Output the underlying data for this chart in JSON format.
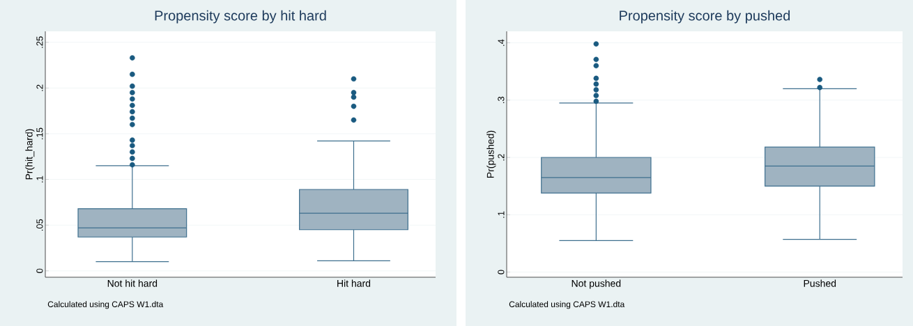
{
  "chart_data": [
    {
      "type": "box",
      "title": "Propensity score by hit hard",
      "ylabel": "Pr(hit_hard)",
      "categories": [
        "Not hit hard",
        "Hit hard"
      ],
      "color": "#9fb3c1",
      "boxes": [
        {
          "low": 0.01,
          "q1": 0.037,
          "median": 0.047,
          "q3": 0.068,
          "high": 0.115,
          "outliers": [
            0.116,
            0.123,
            0.13,
            0.137,
            0.143,
            0.16,
            0.167,
            0.174,
            0.181,
            0.188,
            0.195,
            0.202,
            0.215,
            0.233
          ]
        },
        {
          "low": 0.011,
          "q1": 0.045,
          "median": 0.063,
          "q3": 0.089,
          "high": 0.142,
          "outliers": [
            0.165,
            0.18,
            0.19,
            0.195,
            0.21
          ]
        }
      ],
      "ylim": [
        -0.007,
        0.262
      ],
      "yticks": [
        0,
        {
          "value": 0.05,
          "label": ".05"
        },
        {
          "value": 0.1,
          "label": ".1"
        },
        {
          "value": 0.15,
          "label": ".15"
        },
        {
          "value": 0.2,
          "label": ".2"
        },
        {
          "value": 0.25,
          "label": ".25"
        }
      ],
      "grid": "y",
      "annotations": [
        "Calculated using CAPS W1.dta"
      ]
    },
    {
      "type": "box",
      "title": "Propensity score by pushed",
      "ylabel": "Pr(pushed)",
      "categories": [
        "Not pushed",
        "Pushed"
      ],
      "color": "#9fb3c1",
      "boxes": [
        {
          "low": 0.055,
          "q1": 0.138,
          "median": 0.165,
          "q3": 0.2,
          "high": 0.295,
          "outliers": [
            0.298,
            0.308,
            0.318,
            0.328,
            0.338,
            0.36,
            0.371,
            0.398
          ]
        },
        {
          "low": 0.057,
          "q1": 0.15,
          "median": 0.185,
          "q3": 0.218,
          "high": 0.32,
          "outliers": [
            0.322,
            0.336
          ]
        }
      ],
      "ylim": [
        -0.009,
        0.42
      ],
      "yticks": [
        0,
        {
          "value": 0.1,
          "label": ".1"
        },
        {
          "value": 0.2,
          "label": ".2"
        },
        {
          "value": 0.3,
          "label": ".3"
        },
        {
          "value": 0.4,
          "label": ".4"
        }
      ],
      "grid": "y",
      "annotations": [
        "Calculated using CAPS W1.dta"
      ]
    }
  ]
}
